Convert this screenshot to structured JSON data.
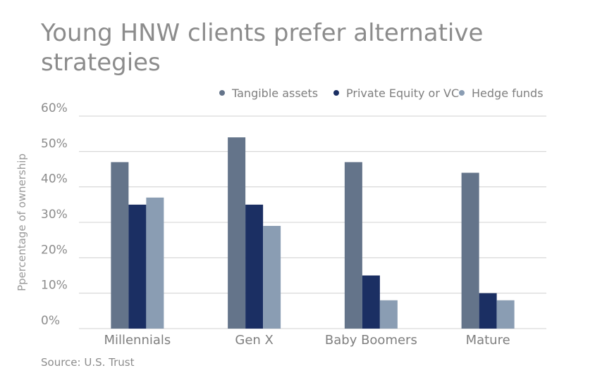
{
  "chart_data": {
    "type": "bar",
    "title": "Young HNW clients prefer alternative strategies",
    "ylabel": "Ppercentage of ownership",
    "xlabel": "",
    "source": "Source: U.S. Trust",
    "categories": [
      "Millennials",
      "Gen X",
      "Baby Boomers",
      "Mature"
    ],
    "series": [
      {
        "name": "Tangible assets",
        "color": "#64748a",
        "values": [
          47,
          54,
          47,
          44
        ]
      },
      {
        "name": "Private Equity or VC",
        "color": "#1b2f63",
        "values": [
          35,
          35,
          15,
          10
        ]
      },
      {
        "name": "Hedge funds",
        "color": "#8a9db3",
        "values": [
          37,
          29,
          8,
          8
        ]
      }
    ],
    "ylim": [
      0,
      60
    ],
    "yticks": [
      "0%",
      "10%",
      "20%",
      "30%",
      "40%",
      "50%",
      "60%"
    ],
    "grid": true,
    "legend_position": "top-right"
  }
}
